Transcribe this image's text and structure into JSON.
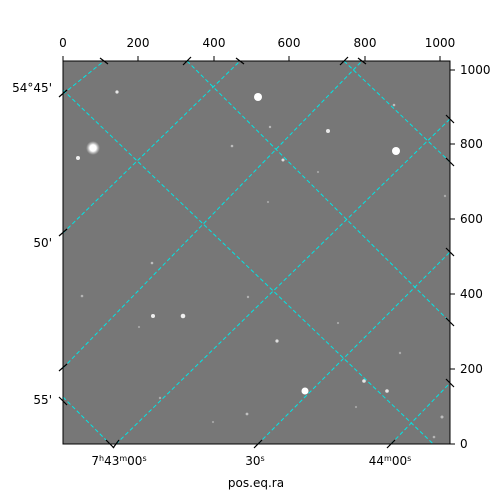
{
  "figure": {
    "xlabel": "pos.eq.ra",
    "pixel_top_ticks": [
      "0",
      "200",
      "400",
      "600",
      "800",
      "1000"
    ],
    "pixel_right_ticks": [
      "0",
      "200",
      "400",
      "600",
      "800",
      "1000"
    ],
    "ra_ticks": [
      {
        "h": "7",
        "hs": "h",
        "m": "43",
        "ms": "m",
        "s": "00",
        "ss": "s"
      },
      {
        "s": "30",
        "ss": "s"
      },
      {
        "m": "44",
        "ms": "m",
        "s": "00",
        "ss": "s"
      }
    ],
    "dec_ticks": [
      "54°45'",
      "50'",
      "55'"
    ],
    "grid_color": "#00e5e5",
    "image_background": "#777777"
  }
}
